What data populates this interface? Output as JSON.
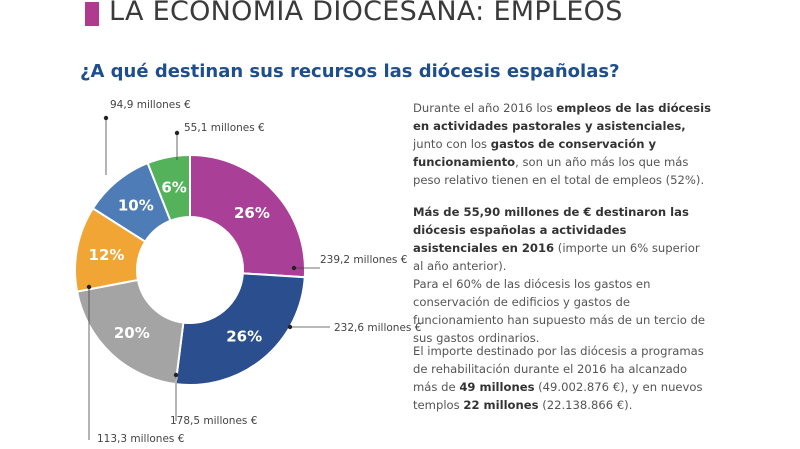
{
  "header": {
    "title": "LA ECONOMÍA DIOCESANA: EMPLEOS",
    "accent_color": "#b03a8e"
  },
  "subtitle": "¿A qué destinan sus recursos las diócesis españolas?",
  "chart_data": {
    "type": "pie",
    "variant": "donut",
    "start": "top",
    "direction": "clockwise",
    "slices": [
      {
        "percent": 26,
        "label": "26%",
        "value_label": "239,2 millones €",
        "color": "#a93f96"
      },
      {
        "percent": 26,
        "label": "26%",
        "value_label": "232,6 millones €",
        "color": "#2b4e8f"
      },
      {
        "percent": 20,
        "label": "20%",
        "value_label": "178,5 millones €",
        "color": "#a4a4a4"
      },
      {
        "percent": 12,
        "label": "12%",
        "value_label": "113,3 millones €",
        "color": "#f0a535"
      },
      {
        "percent": 10,
        "label": "10%",
        "value_label": "94,9 millones €",
        "color": "#4e7cb6"
      },
      {
        "percent": 6,
        "label": "6%",
        "value_label": "55,1 millones €",
        "color": "#54b25a"
      }
    ]
  },
  "text": {
    "p1": [
      {
        "t": "Durante el año 2016 los ",
        "b": false
      },
      {
        "t": "empleos de las diócesis en actividades pastorales y asistenciales,",
        "b": true
      },
      {
        "t": " junto con los ",
        "b": false
      },
      {
        "t": "gastos de conservación y funcionamiento",
        "b": true
      },
      {
        "t": ", son un año más los que más peso relativo tienen en el total de empleos (52%).",
        "b": false
      }
    ],
    "p2": [
      {
        "t": "Más de 55,90 millones de € destinaron las diócesis españolas a actividades asistenciales en 2016",
        "b": true
      },
      {
        "t": " (importe un 6% superior al año anterior).",
        "b": false
      }
    ],
    "p3": [
      {
        "t": "Para el 60% de las diócesis los gastos en conservación de edificios y gastos de funcionamiento han supuesto más de un tercio de sus gastos ordinarios.",
        "b": false
      }
    ],
    "p4": [
      {
        "t": "El importe destinado por las diócesis a programas de rehabilitación durante el 2016 ha alcanzado más de ",
        "b": false
      },
      {
        "t": "49 millones",
        "b": true
      },
      {
        "t": " (49.002.876 €), y en nuevos templos ",
        "b": false
      },
      {
        "t": "22 millones",
        "b": true
      },
      {
        "t": " (22.138.866 €).",
        "b": false
      }
    ]
  }
}
